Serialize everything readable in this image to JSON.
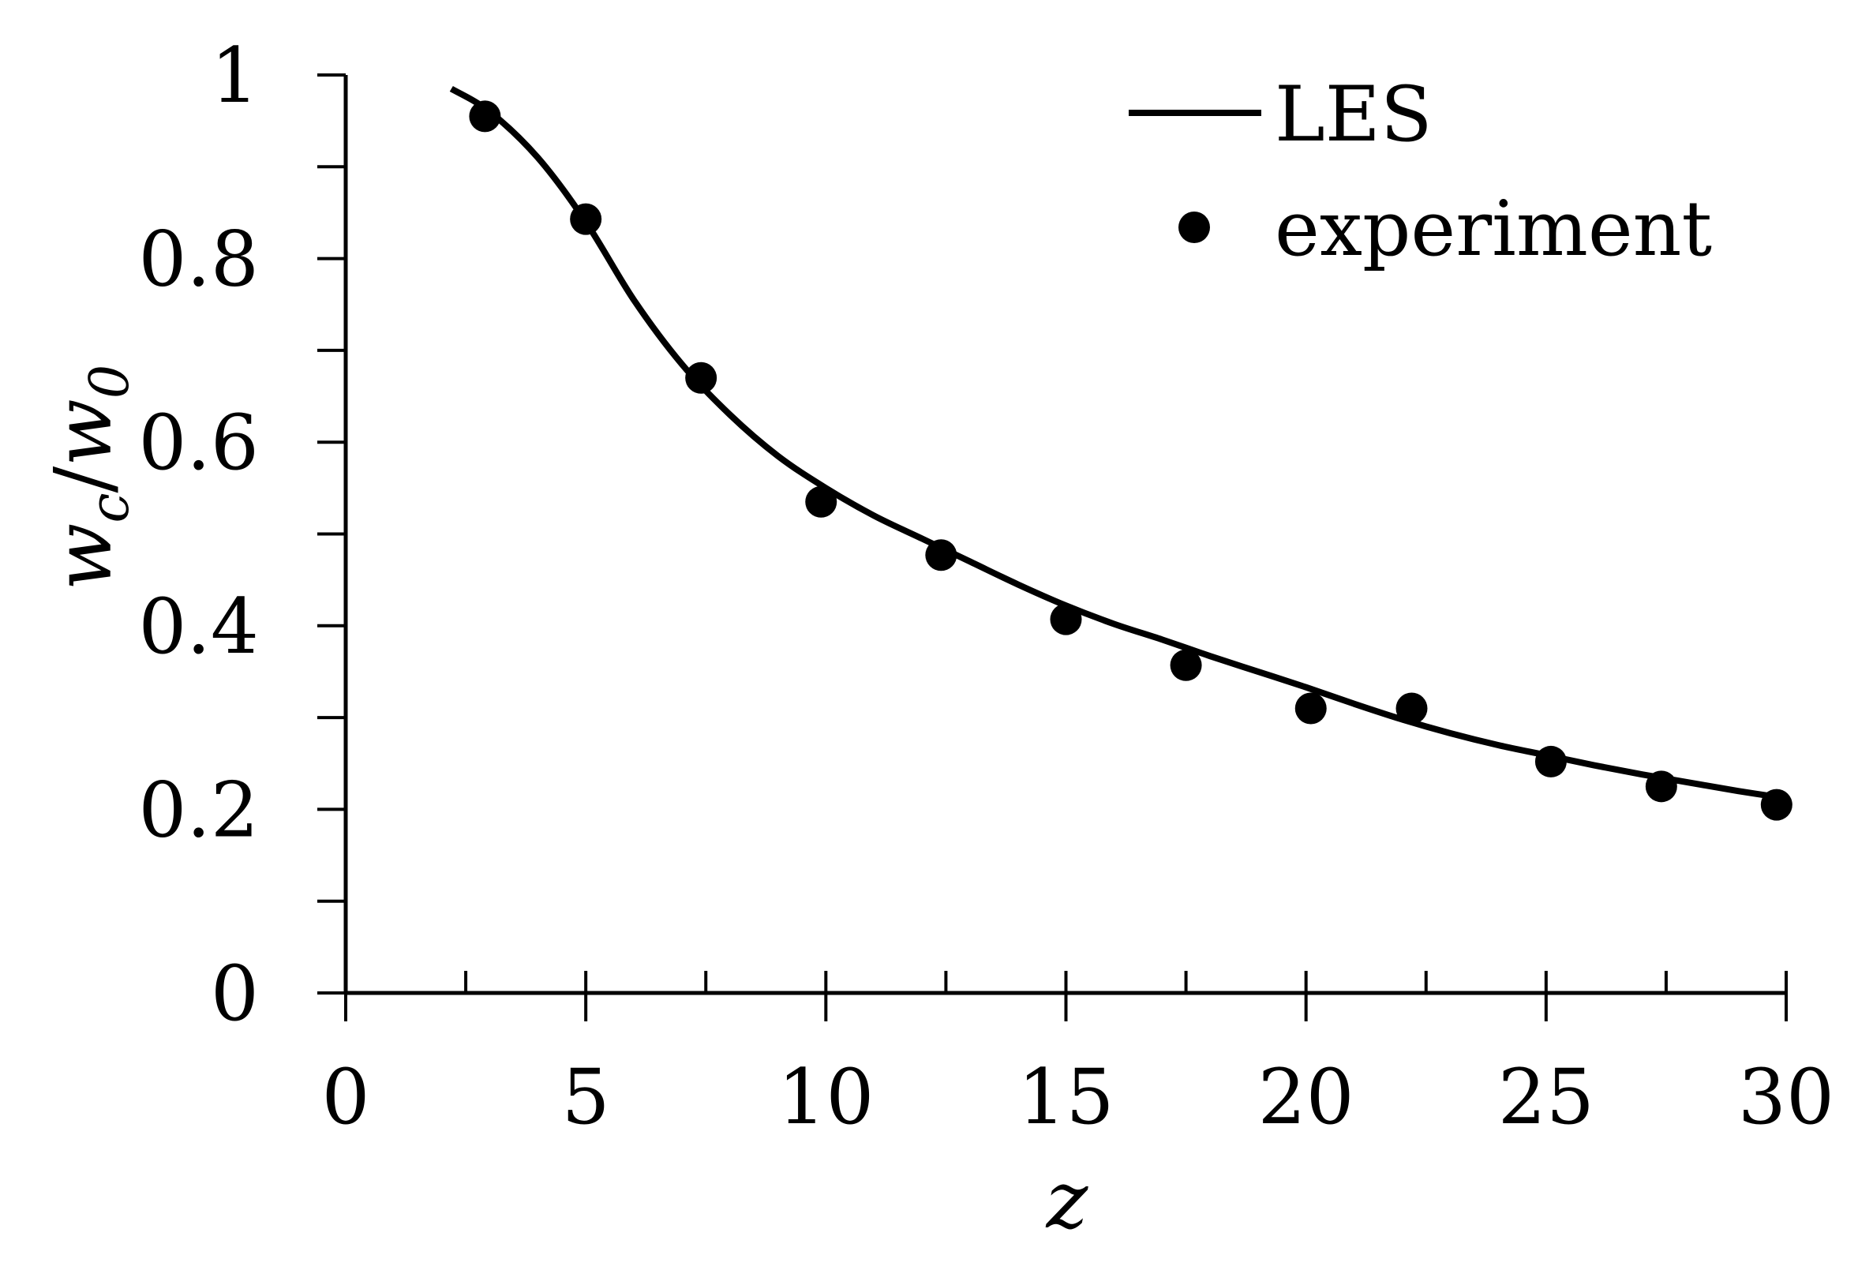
{
  "chart_data": {
    "type": "line",
    "title": "",
    "xlabel": "z",
    "ylabel": {
      "base1": "w",
      "sub1": "c",
      "slash": "/",
      "base2": "w",
      "sub2": "0"
    },
    "xlim": [
      0,
      30
    ],
    "ylim": [
      0,
      1
    ],
    "x_ticks": [
      0,
      5,
      10,
      15,
      20,
      25,
      30
    ],
    "x_tick_labels": [
      "0",
      "5",
      "10",
      "15",
      "20",
      "25",
      "30"
    ],
    "x_minor_ticks": [
      2.5,
      7.5,
      12.5,
      17.5,
      22.5,
      27.5
    ],
    "y_ticks": [
      0,
      0.2,
      0.4,
      0.6,
      0.8,
      1
    ],
    "y_tick_labels": [
      "0",
      "0.2",
      "0.4",
      "0.6",
      "0.8",
      "1"
    ],
    "y_minor_ticks": [
      0.1,
      0.3,
      0.5,
      0.7,
      0.9
    ],
    "grid": false,
    "legend_position": "top-right",
    "colors": {
      "line": "#000000",
      "marker": "#000000",
      "axis": "#000000"
    },
    "series": [
      {
        "name": "LES",
        "type": "line",
        "x": [
          2.2,
          3,
          4,
          5,
          6,
          7,
          8,
          9,
          10,
          11,
          12,
          13,
          14,
          15,
          16,
          17,
          18,
          19,
          20,
          21,
          22,
          23,
          24,
          25,
          26,
          27,
          28,
          29,
          30
        ],
        "y": [
          0.985,
          0.96,
          0.91,
          0.84,
          0.755,
          0.685,
          0.63,
          0.585,
          0.55,
          0.52,
          0.495,
          0.47,
          0.445,
          0.422,
          0.402,
          0.385,
          0.367,
          0.35,
          0.333,
          0.315,
          0.298,
          0.283,
          0.27,
          0.259,
          0.248,
          0.238,
          0.229,
          0.22,
          0.212
        ]
      },
      {
        "name": "experiment",
        "type": "scatter",
        "x": [
          2.9,
          5.0,
          7.4,
          9.9,
          12.4,
          15.0,
          17.5,
          20.1,
          22.2,
          25.1,
          27.4,
          29.8
        ],
        "y": [
          0.955,
          0.843,
          0.67,
          0.535,
          0.477,
          0.407,
          0.357,
          0.31,
          0.31,
          0.252,
          0.225,
          0.205
        ]
      }
    ]
  }
}
